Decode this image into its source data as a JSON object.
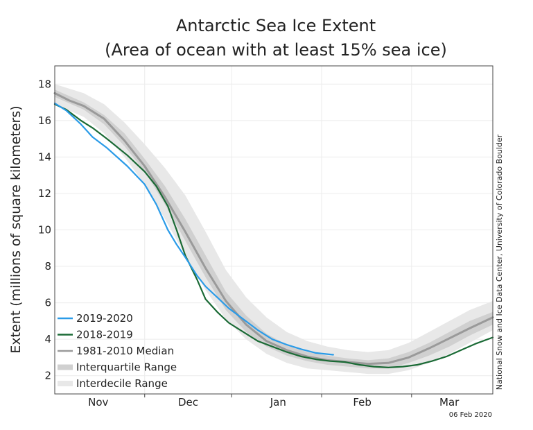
{
  "chart_data": {
    "type": "line",
    "title": "Antarctic Sea Ice Extent",
    "subtitle": "(Area of ocean with at least 15% sea ice)",
    "ylabel": "Extent (millions of square kilometers)",
    "xlabel": "",
    "ylim": [
      1,
      19
    ],
    "xlim_day": [
      0,
      151
    ],
    "y_ticks": [
      2,
      4,
      6,
      8,
      10,
      12,
      14,
      16,
      18
    ],
    "x_ticks": [
      {
        "label": "Nov",
        "day": 15
      },
      {
        "label": "Dec",
        "day": 46
      },
      {
        "label": "Jan",
        "day": 77
      },
      {
        "label": "Feb",
        "day": 106
      },
      {
        "label": "Mar",
        "day": 136
      }
    ],
    "month_boundaries_day": [
      31,
      61,
      92,
      123
    ],
    "interdecile": {
      "name": "Interdecile Range",
      "color": "#e8e8e8",
      "day": [
        0,
        10,
        17,
        24,
        31,
        38,
        45,
        52,
        59,
        66,
        73,
        80,
        87,
        94,
        101,
        108,
        115,
        122,
        129,
        136,
        143,
        151
      ],
      "low": [
        16.9,
        16.2,
        15.3,
        14.0,
        12.5,
        10.6,
        8.6,
        6.7,
        5.1,
        4.0,
        3.2,
        2.7,
        2.4,
        2.3,
        2.2,
        2.1,
        2.1,
        2.3,
        2.7,
        3.2,
        3.8,
        4.5
      ],
      "high": [
        18.0,
        17.5,
        16.9,
        15.9,
        14.7,
        13.4,
        11.9,
        9.9,
        7.8,
        6.3,
        5.2,
        4.4,
        3.9,
        3.6,
        3.4,
        3.3,
        3.4,
        3.8,
        4.4,
        5.0,
        5.6,
        6.1
      ]
    },
    "interquartile": {
      "name": "Interquartile Range",
      "color": "#d0d0d0",
      "day": [
        0,
        10,
        17,
        24,
        31,
        38,
        45,
        52,
        59,
        66,
        73,
        80,
        87,
        94,
        101,
        108,
        115,
        122,
        129,
        136,
        143,
        151
      ],
      "low": [
        17.3,
        16.6,
        15.8,
        14.6,
        13.2,
        11.4,
        9.4,
        7.4,
        5.6,
        4.4,
        3.6,
        3.1,
        2.8,
        2.6,
        2.5,
        2.4,
        2.4,
        2.7,
        3.1,
        3.6,
        4.2,
        4.8
      ],
      "high": [
        17.7,
        17.0,
        16.3,
        15.3,
        13.9,
        12.4,
        10.6,
        8.6,
        6.6,
        5.3,
        4.3,
        3.7,
        3.3,
        3.1,
        2.95,
        2.85,
        2.95,
        3.3,
        3.8,
        4.4,
        5.0,
        5.5
      ]
    },
    "series": [
      {
        "name": "1981-2010 Median",
        "color": "#9a9a9a",
        "day": [
          0,
          5,
          10,
          17,
          24,
          31,
          38,
          45,
          52,
          59,
          66,
          73,
          80,
          87,
          94,
          101,
          108,
          115,
          122,
          129,
          136,
          143,
          151
        ],
        "value": [
          17.5,
          17.1,
          16.8,
          16.1,
          14.9,
          13.5,
          11.8,
          9.9,
          7.9,
          6.1,
          4.8,
          3.9,
          3.4,
          3.05,
          2.85,
          2.75,
          2.65,
          2.7,
          3.0,
          3.5,
          4.05,
          4.6,
          5.2
        ]
      },
      {
        "name": "2018-2019",
        "color": "#1a6a35",
        "day": [
          0,
          4,
          9,
          13,
          18,
          25,
          31,
          35,
          39,
          42,
          45,
          49,
          52,
          56,
          60,
          65,
          70,
          75,
          80,
          85,
          90,
          95,
          100,
          105,
          110,
          115,
          120,
          125,
          130,
          135,
          140,
          145,
          151
        ],
        "value": [
          16.9,
          16.6,
          16.0,
          15.6,
          15.0,
          14.1,
          13.2,
          12.4,
          11.3,
          10.0,
          8.6,
          7.3,
          6.2,
          5.5,
          4.9,
          4.4,
          3.9,
          3.6,
          3.3,
          3.05,
          2.9,
          2.8,
          2.75,
          2.6,
          2.5,
          2.45,
          2.5,
          2.6,
          2.8,
          3.05,
          3.4,
          3.75,
          4.1
        ]
      },
      {
        "name": "2019-2020",
        "color": "#2a9be8",
        "day": [
          0,
          4,
          9,
          13,
          18,
          25,
          31,
          35,
          39,
          42,
          45,
          49,
          52,
          56,
          60,
          65,
          70,
          75,
          80,
          85,
          90,
          96
        ],
        "value": [
          16.95,
          16.55,
          15.8,
          15.1,
          14.5,
          13.5,
          12.5,
          11.4,
          10.0,
          9.2,
          8.5,
          7.5,
          6.9,
          6.3,
          5.7,
          5.1,
          4.5,
          4.0,
          3.7,
          3.45,
          3.25,
          3.15
        ]
      }
    ],
    "legend": {
      "placement": "bottom-left",
      "items": [
        {
          "label": "2019-2020",
          "color": "#2a9be8",
          "kind": "line"
        },
        {
          "label": "2018-2019",
          "color": "#1a6a35",
          "kind": "line"
        },
        {
          "label": "1981-2010 Median",
          "color": "#9a9a9a",
          "kind": "line"
        },
        {
          "label": "Interquartile Range",
          "color": "#d0d0d0",
          "kind": "band"
        },
        {
          "label": "Interdecile Range",
          "color": "#e8e8e8",
          "kind": "band"
        }
      ]
    },
    "grid": true
  },
  "credit": "National Snow and Ice Data Center, University of Colorado Boulder",
  "date_label": "06 Feb 2020"
}
